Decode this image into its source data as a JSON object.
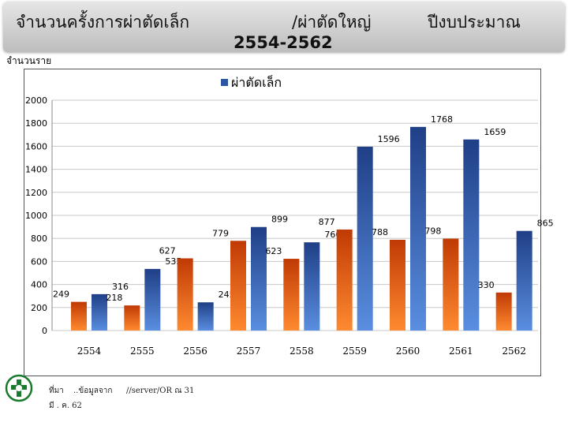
{
  "title": {
    "part1": "จำนวนครั้งการผ่าตัดเล็ก",
    "part2": "/ผ่าตัดใหญ่",
    "part3": "ปีงบประมาณ",
    "years": "2554-2562"
  },
  "unit_label": "จำนวนราย",
  "footer": {
    "source_a": "ที่มา",
    "source_b": "..ข้อมูลจาก",
    "source_c": "//server/OR ณ 31",
    "source_d": "มี . ค. 62"
  },
  "colors": {
    "series1": "#d24a08",
    "series2": "#2b56a6",
    "grid": "#c8c8c8"
  },
  "chart_data": {
    "type": "bar",
    "legend_position": "top-center",
    "grid": true,
    "categories": [
      "2554",
      "2555",
      "2556",
      "2557",
      "2558",
      "2559",
      "2560",
      "2561",
      "2562"
    ],
    "series": [
      {
        "name": "",
        "values": [
          249,
          218,
          627,
          779,
          623,
          877,
          788,
          798,
          330
        ]
      },
      {
        "name": "ผ่าตัดเล็ก",
        "values": [
          316,
          535,
          245,
          899,
          766,
          1596,
          1768,
          1659,
          865
        ]
      }
    ],
    "ylim": [
      0,
      2000
    ],
    "yticks": [
      0,
      200,
      400,
      600,
      800,
      1000,
      1200,
      1400,
      1600,
      1800,
      2000
    ]
  }
}
